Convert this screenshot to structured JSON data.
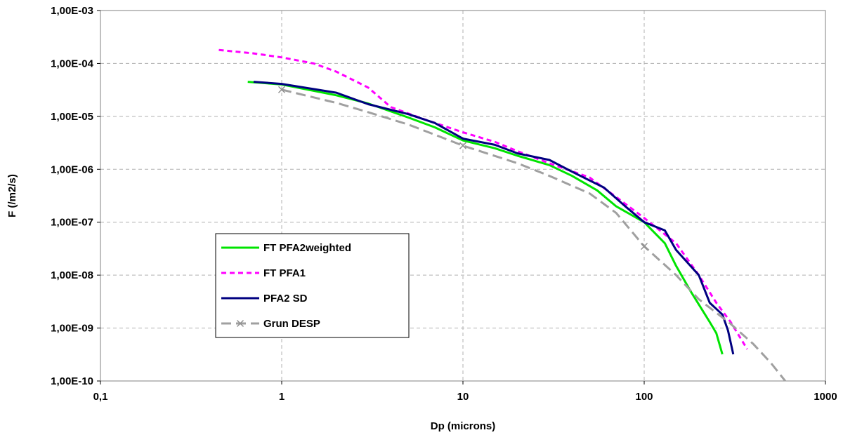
{
  "chart_data": {
    "type": "line",
    "x_scale": "log",
    "y_scale": "log",
    "xlim": [
      0.1,
      1000
    ],
    "ylim": [
      1e-10,
      0.001
    ],
    "xlabel": "Dp (microns)",
    "ylabel": "F (/m2/s)",
    "x_ticks": [
      "0,1",
      "1",
      "10",
      "100",
      "1000"
    ],
    "y_ticks": [
      "1,00E-10",
      "1,00E-09",
      "1,00E-08",
      "1,00E-07",
      "1,00E-06",
      "1,00E-05",
      "1,00E-04",
      "1,00E-03"
    ],
    "grid": "dashed-gray",
    "legend_position": "lower-left",
    "series": [
      {
        "name": "FT PFA2weighted",
        "color": "#00e400",
        "style": "solid",
        "points": [
          [
            0.65,
            4.5e-05
          ],
          [
            1,
            4e-05
          ],
          [
            2,
            2.5e-05
          ],
          [
            3,
            1.75e-05
          ],
          [
            5,
            9.5e-06
          ],
          [
            7,
            6.2e-06
          ],
          [
            10,
            3.5e-06
          ],
          [
            15,
            2.5e-06
          ],
          [
            20,
            1.8e-06
          ],
          [
            30,
            1.2e-06
          ],
          [
            40,
            7.5e-07
          ],
          [
            55,
            4e-07
          ],
          [
            70,
            2e-07
          ],
          [
            100,
            1e-07
          ],
          [
            130,
            4e-08
          ],
          [
            150,
            1.5e-08
          ],
          [
            180,
            5e-09
          ],
          [
            200,
            2.8e-09
          ],
          [
            230,
            1.3e-09
          ],
          [
            250,
            8e-10
          ],
          [
            270,
            3.2e-10
          ]
        ]
      },
      {
        "name": "FT PFA1",
        "color": "#ff00ff",
        "style": "dotted",
        "points": [
          [
            0.45,
            0.00018
          ],
          [
            0.7,
            0.000155
          ],
          [
            1,
            0.00013
          ],
          [
            1.5,
            0.0001
          ],
          [
            2,
            7e-05
          ],
          [
            3,
            3.5e-05
          ],
          [
            4,
            1.5e-05
          ],
          [
            6,
            9e-06
          ],
          [
            10,
            5e-06
          ],
          [
            15,
            3.3e-06
          ],
          [
            20,
            2.2e-06
          ],
          [
            30,
            1.3e-06
          ],
          [
            50,
            7e-07
          ],
          [
            70,
            3e-07
          ],
          [
            100,
            1.2e-07
          ],
          [
            150,
            4e-08
          ],
          [
            200,
            1e-08
          ],
          [
            250,
            3e-09
          ],
          [
            300,
            1.3e-09
          ],
          [
            370,
            4e-10
          ]
        ]
      },
      {
        "name": "PFA2 SD",
        "color": "#000080",
        "style": "solid",
        "points": [
          [
            0.7,
            4.5e-05
          ],
          [
            1,
            4.1e-05
          ],
          [
            2,
            2.8e-05
          ],
          [
            3,
            1.7e-05
          ],
          [
            5,
            1.1e-05
          ],
          [
            7,
            7.5e-06
          ],
          [
            10,
            3.8e-06
          ],
          [
            15,
            2.9e-06
          ],
          [
            20,
            2e-06
          ],
          [
            30,
            1.5e-06
          ],
          [
            40,
            9e-07
          ],
          [
            60,
            4.5e-07
          ],
          [
            80,
            1.9e-07
          ],
          [
            100,
            1e-07
          ],
          [
            130,
            7e-08
          ],
          [
            150,
            3e-08
          ],
          [
            200,
            1e-08
          ],
          [
            230,
            3e-09
          ],
          [
            270,
            1.8e-09
          ],
          [
            290,
            9e-10
          ],
          [
            310,
            3.2e-10
          ]
        ]
      },
      {
        "name": "Grun DESP",
        "color": "#a0a0a0",
        "style": "dashed",
        "marker": "x",
        "marker_x": [
          1,
          10,
          100
        ],
        "points": [
          [
            1,
            3.2e-05
          ],
          [
            2,
            1.8e-05
          ],
          [
            3,
            1.2e-05
          ],
          [
            5,
            7e-06
          ],
          [
            7,
            4.5e-06
          ],
          [
            10,
            2.8e-06
          ],
          [
            20,
            1.3e-06
          ],
          [
            30,
            7.5e-07
          ],
          [
            50,
            3.5e-07
          ],
          [
            70,
            1.5e-07
          ],
          [
            100,
            3.5e-08
          ],
          [
            150,
            1e-08
          ],
          [
            200,
            3.5e-09
          ],
          [
            300,
            1.2e-09
          ],
          [
            400,
            5e-10
          ],
          [
            500,
            2.2e-10
          ],
          [
            600,
            1e-10
          ]
        ]
      }
    ]
  }
}
